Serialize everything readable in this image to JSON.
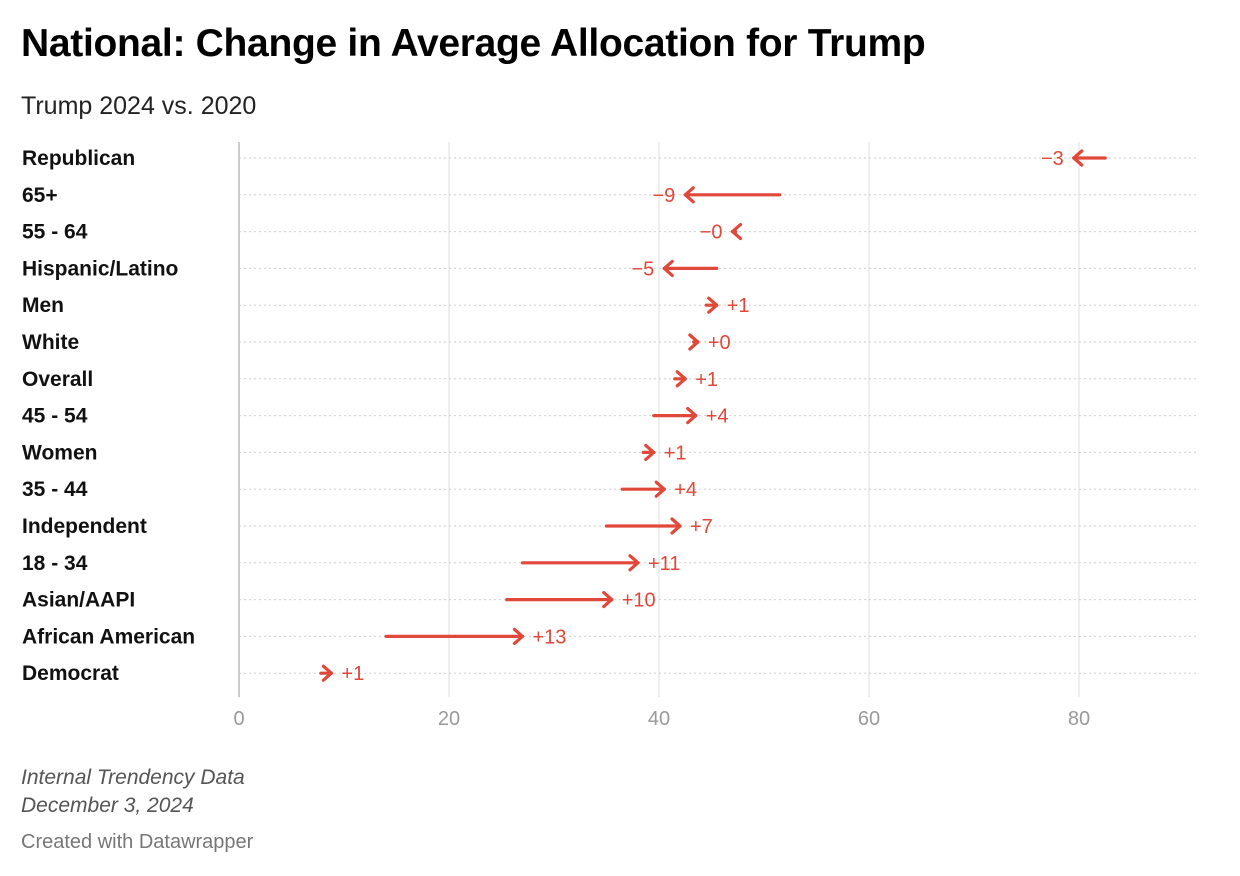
{
  "title": "National: Change in Average Allocation for Trump",
  "subtitle": "Trump 2024 vs. 2020",
  "footer": {
    "source": "Internal Trendency Data",
    "date": "December 3, 2024",
    "credit": "Created with Datawrapper"
  },
  "colors": {
    "arrow": "#e0483a",
    "grid": "#dddddd",
    "axis": "#bbbbbb"
  },
  "chart_data": {
    "type": "arrow",
    "xlim": [
      0,
      90
    ],
    "x_ticks": [
      0,
      20,
      40,
      60,
      80
    ],
    "rows": [
      {
        "label": "Republican",
        "from": 82.5,
        "to": 79.5,
        "change": "−3"
      },
      {
        "label": "65+",
        "from": 51.5,
        "to": 42.5,
        "change": "−9"
      },
      {
        "label": "55 - 64",
        "from": 47.3,
        "to": 47.0,
        "change": "−0"
      },
      {
        "label": "Hispanic/Latino",
        "from": 45.5,
        "to": 40.5,
        "change": "−5"
      },
      {
        "label": "Men",
        "from": 44.5,
        "to": 45.5,
        "change": "+1"
      },
      {
        "label": "White",
        "from": 43.3,
        "to": 43.7,
        "change": "+0"
      },
      {
        "label": "Overall",
        "from": 41.5,
        "to": 42.5,
        "change": "+1"
      },
      {
        "label": "45 - 54",
        "from": 39.5,
        "to": 43.5,
        "change": "+4"
      },
      {
        "label": "Women",
        "from": 38.5,
        "to": 39.5,
        "change": "+1"
      },
      {
        "label": "35 - 44",
        "from": 36.5,
        "to": 40.5,
        "change": "+4"
      },
      {
        "label": "Independent",
        "from": 35.0,
        "to": 42.0,
        "change": "+7"
      },
      {
        "label": "18 - 34",
        "from": 27.0,
        "to": 38.0,
        "change": "+11"
      },
      {
        "label": "Asian/AAPI",
        "from": 25.5,
        "to": 35.5,
        "change": "+10"
      },
      {
        "label": "African American",
        "from": 14.0,
        "to": 27.0,
        "change": "+13"
      },
      {
        "label": "Democrat",
        "from": 7.8,
        "to": 8.8,
        "change": "+1"
      }
    ]
  }
}
